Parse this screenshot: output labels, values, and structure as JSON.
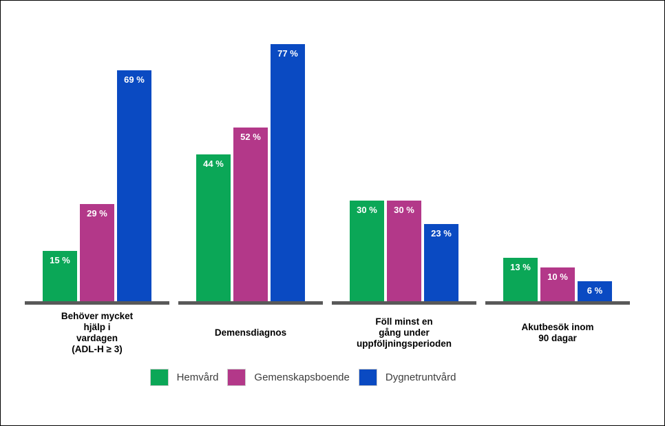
{
  "chart_data": {
    "type": "bar",
    "title": "",
    "xlabel": "",
    "ylabel": "",
    "ylim": [
      0,
      80
    ],
    "grid": false,
    "legend_position": "bottom",
    "axis_color": "#595959",
    "background_color": "#ffffff",
    "border_color": "#000000",
    "value_label_format": "{v} %",
    "value_label_color": "#ffffff",
    "categories": [
      "Behöver mycket hjälp i vardagen (ADL-H ≥ 3)",
      "Demensdiagnos",
      "Föll minst en gång under uppföljningsperioden",
      "Akutbesök inom 90 dagar"
    ],
    "category_lines": [
      [
        "Behöver mycket",
        "hjälp i",
        "vardagen",
        "(ADL-H ≥ 3)"
      ],
      [
        "Demensdiagnos"
      ],
      [
        "Föll minst en",
        "gång under",
        "uppföljningsperioden"
      ],
      [
        "Akutbesök inom",
        "90 dagar"
      ]
    ],
    "series": [
      {
        "name": "Hemvård",
        "color": "#0BA757",
        "values": [
          15,
          44,
          30,
          13
        ]
      },
      {
        "name": "Gemenskapsboende",
        "color": "#B33889",
        "values": [
          29,
          52,
          30,
          10
        ]
      },
      {
        "name": "Dygnetruntvård",
        "color": "#0A4AC2",
        "values": [
          69,
          77,
          23,
          6
        ]
      }
    ]
  }
}
